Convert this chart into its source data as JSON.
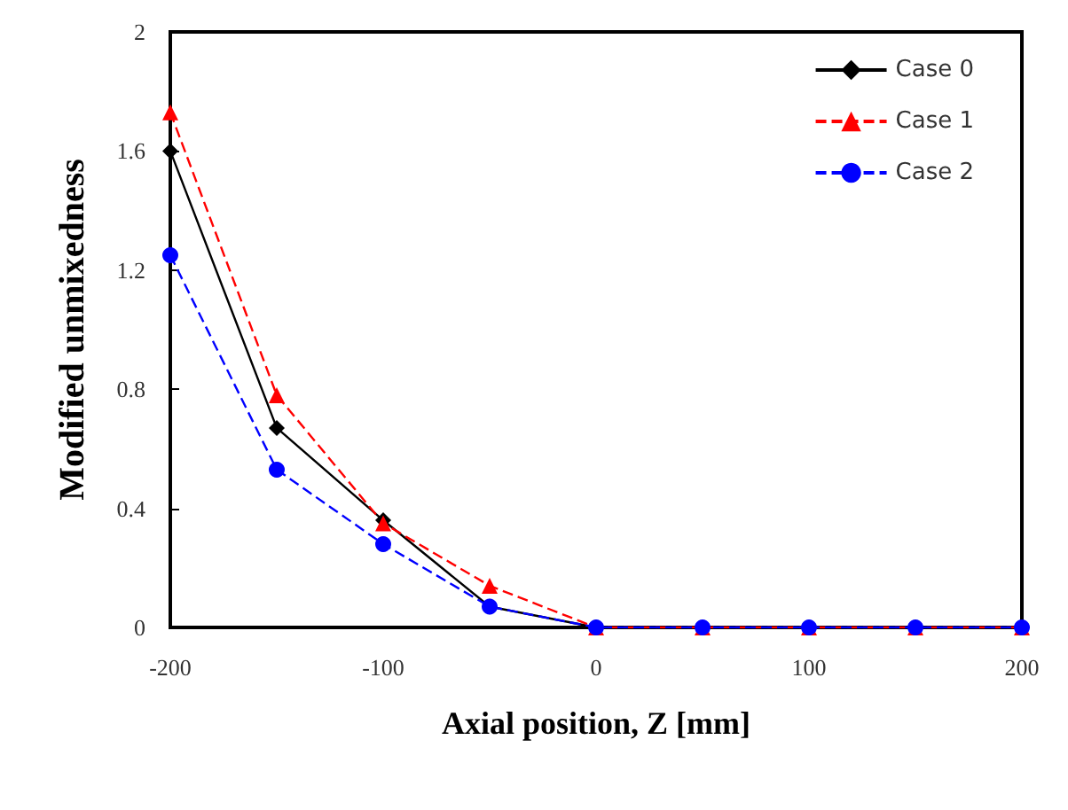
{
  "chart_data": {
    "type": "line",
    "xlabel": "Axial position, Z [mm]",
    "ylabel": "Modified unmixedness",
    "x": [
      -200,
      -150,
      -100,
      -50,
      0,
      50,
      100,
      150,
      200
    ],
    "series": [
      {
        "name": "Case 0",
        "color": "#000000",
        "marker": "diamond",
        "line_style": "solid",
        "values": [
          1.6,
          0.67,
          0.36,
          0.07,
          0,
          0,
          0,
          0,
          0
        ]
      },
      {
        "name": "Case 1",
        "color": "#ff0000",
        "marker": "triangle",
        "line_style": "dashed",
        "values": [
          1.73,
          0.78,
          0.35,
          0.14,
          0,
          0,
          0,
          0,
          0
        ]
      },
      {
        "name": "Case 2",
        "color": "#0000ff",
        "marker": "circle",
        "line_style": "dashed",
        "values": [
          1.25,
          0.53,
          0.28,
          0.07,
          0,
          0,
          0,
          0,
          0
        ]
      }
    ],
    "xlim": [
      -200,
      200
    ],
    "xticks": [
      -200,
      -100,
      0,
      100,
      200
    ],
    "ylim": [
      0,
      2
    ],
    "yticks": [
      0,
      0.4,
      0.8,
      1.2,
      1.6,
      2
    ],
    "grid": false,
    "legend": "top right"
  }
}
